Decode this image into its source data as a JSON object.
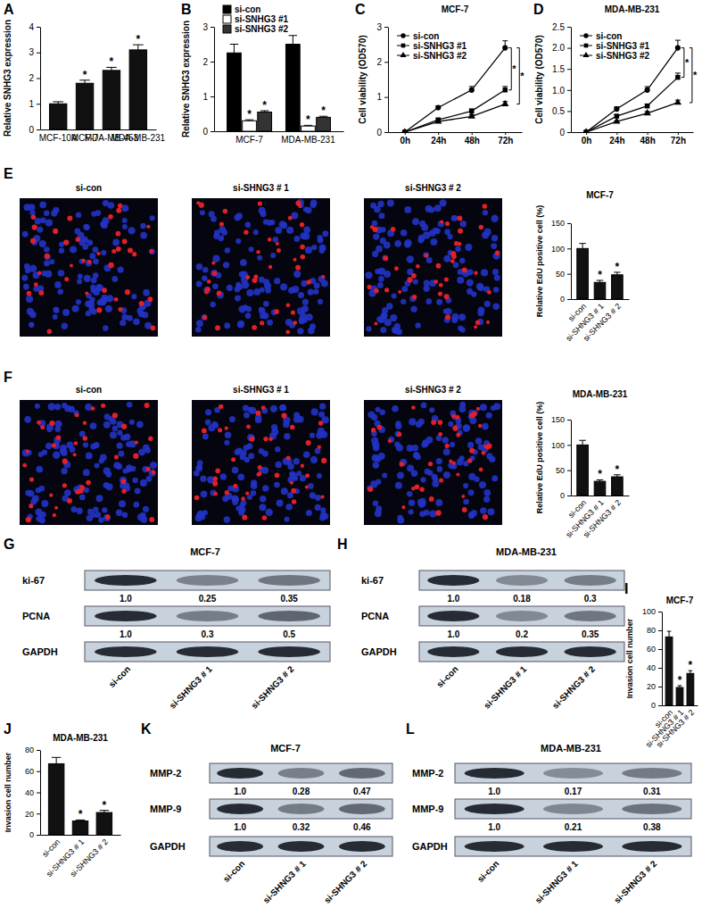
{
  "chart_data": [
    {
      "panel": "A",
      "type": "bar",
      "categories": [
        "MCF-10A",
        "MCF-7",
        "MDA-MB-453",
        "MDA-MB-231"
      ],
      "values": [
        1.0,
        1.8,
        2.3,
        3.1
      ],
      "errors": [
        0.08,
        0.12,
        0.12,
        0.2
      ],
      "significance": [
        null,
        "*",
        "*",
        "*"
      ],
      "color": "#111111",
      "y_label": "Relative SNHG3 expression",
      "ylim": [
        0,
        4
      ],
      "yticks": [
        0,
        1,
        2,
        3,
        4
      ]
    },
    {
      "panel": "B",
      "type": "grouped_bar",
      "categories": [
        "MCF-7",
        "MDA-MB-231"
      ],
      "series": [
        {
          "name": "si-con",
          "color": "#000000",
          "values": [
            2.25,
            2.5
          ],
          "errors": [
            0.25,
            0.25
          ],
          "significance": [
            null,
            null
          ]
        },
        {
          "name": "si-SNHG3 #1",
          "color": "#ffffff",
          "values": [
            0.3,
            0.15
          ],
          "errors": [
            0.03,
            0.02
          ],
          "significance": [
            "*",
            "*"
          ]
        },
        {
          "name": "si-SNHG3 #2",
          "color": "#333333",
          "values": [
            0.55,
            0.4
          ],
          "errors": [
            0.04,
            0.03
          ],
          "significance": [
            "*",
            "*"
          ]
        }
      ],
      "y_label": "Relative SNHG3 expression",
      "ylim": [
        0,
        3
      ],
      "yticks": [
        0,
        1,
        2,
        3
      ],
      "legend": "top-left"
    },
    {
      "panel": "C",
      "type": "line",
      "title": "MCF-7",
      "categories": [
        "0h",
        "24h",
        "48h",
        "72h"
      ],
      "series": [
        {
          "name": "si-con",
          "color": "#000000",
          "marker": "circle",
          "values": [
            0,
            0.7,
            1.2,
            2.4
          ],
          "errors": [
            0,
            0.05,
            0.1,
            0.2
          ]
        },
        {
          "name": "si-SNHG3 #1",
          "color": "#000000",
          "marker": "square",
          "values": [
            0,
            0.35,
            0.6,
            1.2
          ],
          "errors": [
            0,
            0.04,
            0.06,
            0.1
          ]
        },
        {
          "name": "si-SNHG3 #2",
          "color": "#000000",
          "marker": "triangle",
          "values": [
            0,
            0.3,
            0.45,
            0.8
          ],
          "errors": [
            0,
            0.03,
            0.05,
            0.07
          ]
        }
      ],
      "annotations": [
        "*",
        "*"
      ],
      "y_label": "Cell viability (OD570)",
      "ylim": [
        0,
        3
      ],
      "yticks": [
        0,
        1,
        2,
        3
      ],
      "legend": "top-left"
    },
    {
      "panel": "D",
      "type": "line",
      "title": "MDA-MB-231",
      "categories": [
        "0h",
        "24h",
        "48h",
        "72h"
      ],
      "series": [
        {
          "name": "si-con",
          "color": "#000000",
          "marker": "circle",
          "values": [
            0,
            0.55,
            1.0,
            2.0
          ],
          "errors": [
            0,
            0.05,
            0.08,
            0.18
          ]
        },
        {
          "name": "si-SNHG3 #1",
          "color": "#000000",
          "marker": "square",
          "values": [
            0,
            0.38,
            0.62,
            1.3
          ],
          "errors": [
            0,
            0.03,
            0.05,
            0.1
          ]
        },
        {
          "name": "si-SNHG3 #2",
          "color": "#000000",
          "marker": "triangle",
          "values": [
            0,
            0.25,
            0.45,
            0.7
          ],
          "errors": [
            0,
            0.02,
            0.04,
            0.06
          ]
        }
      ],
      "annotations": [
        "*",
        "*"
      ],
      "y_label": "Cell viability (OD570)",
      "ylim": [
        0,
        2.5
      ],
      "yticks": [
        0,
        0.5,
        {
          "value": 1,
          "label": "1.0"
        },
        1.5,
        {
          "value": 2,
          "label": "2.0"
        },
        2.5
      ],
      "legend": "top-left"
    },
    {
      "panel": "E",
      "type": "bar",
      "image_labels": [
        "si-con",
        "si-SHNG3 # 1",
        "si-SHNG3 # 2"
      ],
      "title": "MCF-7",
      "categories": [
        "si-con",
        "si-SHNG3 # 1",
        "si-SHNG3 # 2"
      ],
      "values": [
        100,
        33,
        48
      ],
      "errors": [
        10,
        4,
        5
      ],
      "significance": [
        null,
        "*",
        "*"
      ],
      "color": "#111111",
      "y_label": "Relative EdU positive cell (%)",
      "ylim": [
        0,
        150
      ],
      "yticks": [
        0,
        50,
        100,
        150
      ]
    },
    {
      "panel": "F",
      "type": "bar",
      "image_labels": [
        "si-con",
        "si-SHNG3 # 1",
        "si-SHNG3 # 2"
      ],
      "title": "MDA-MB-231",
      "categories": [
        "si-con",
        "si-SHNG3 # 1",
        "si-SHNG3 # 2"
      ],
      "values": [
        100,
        28,
        37
      ],
      "errors": [
        9,
        3,
        4
      ],
      "significance": [
        null,
        "*",
        "*"
      ],
      "color": "#111111",
      "y_label": "Relative EdU positive cell (%)",
      "ylim": [
        0,
        150
      ],
      "yticks": [
        0,
        50,
        100,
        150
      ]
    },
    {
      "panel": "G",
      "type": "blot",
      "title": "MCF-7",
      "lanes": [
        "si-con",
        "si-SHNG3 # 1",
        "si-SHNG3 # 2"
      ],
      "rows": [
        {
          "name": "ki-67",
          "values": [
            1.0,
            0.25,
            0.35
          ],
          "value_labels": [
            "1.0",
            "0.25",
            "0.35"
          ]
        },
        {
          "name": "PCNA",
          "values": [
            1.0,
            0.3,
            0.5
          ],
          "value_labels": [
            "1.0",
            "0.3",
            "0.5"
          ]
        },
        {
          "name": "GAPDH"
        }
      ]
    },
    {
      "panel": "H",
      "type": "blot",
      "title": "MDA-MB-231",
      "lanes": [
        "si-con",
        "si-SHNG3 # 1",
        "si-SHNG3 # 2"
      ],
      "rows": [
        {
          "name": "ki-67",
          "values": [
            1.0,
            0.18,
            0.3
          ],
          "value_labels": [
            "1.0",
            "0.18",
            "0.3"
          ]
        },
        {
          "name": "PCNA",
          "values": [
            1.0,
            0.2,
            0.35
          ],
          "value_labels": [
            "1.0",
            "0.2",
            "0.35"
          ]
        },
        {
          "name": "GAPDH"
        }
      ]
    },
    {
      "panel": "I",
      "type": "bar",
      "title": "MCF-7",
      "categories": [
        "si-con",
        "si-SHNG3 # 1",
        "si-SHNG3 # 2"
      ],
      "values": [
        73,
        19,
        34
      ],
      "errors": [
        6,
        2,
        3
      ],
      "significance": [
        null,
        "*",
        "*"
      ],
      "color": "#111111",
      "y_label": "Invasion cell number",
      "ylim": [
        0,
        100
      ],
      "yticks": [
        0,
        20,
        40,
        60,
        80,
        100
      ]
    },
    {
      "panel": "J",
      "type": "bar",
      "title": "MDA-MB-231",
      "categories": [
        "si-con",
        "si-SHNG3 # 1",
        "si-SHNG3 # 2"
      ],
      "values": [
        67,
        13,
        21
      ],
      "errors": [
        6,
        1,
        2
      ],
      "significance": [
        null,
        "*",
        "*"
      ],
      "color": "#111111",
      "y_label": "Invasion cell number",
      "ylim": [
        0,
        80
      ],
      "yticks": [
        0,
        20,
        40,
        60,
        80
      ]
    },
    {
      "panel": "K",
      "type": "blot",
      "title": "MCF-7",
      "lanes": [
        "si-con",
        "si-SHNG3 # 1",
        "si-SHNG3 # 2"
      ],
      "rows": [
        {
          "name": "MMP-2",
          "values": [
            1.0,
            0.28,
            0.47
          ],
          "value_labels": [
            "1.0",
            "0.28",
            "0.47"
          ]
        },
        {
          "name": "MMP-9",
          "values": [
            1.0,
            0.32,
            0.46
          ],
          "value_labels": [
            "1.0",
            "0.32",
            "0.46"
          ]
        },
        {
          "name": "GAPDH"
        }
      ]
    },
    {
      "panel": "L",
      "type": "blot",
      "title": "MDA-MB-231",
      "lanes": [
        "si-con",
        "si-SHNG3 # 1",
        "si-SHNG3 # 2"
      ],
      "rows": [
        {
          "name": "MMP-2",
          "values": [
            1.0,
            0.17,
            0.31
          ],
          "value_labels": [
            "1.0",
            "0.17",
            "0.31"
          ]
        },
        {
          "name": "MMP-9",
          "values": [
            1.0,
            0.21,
            0.38
          ],
          "value_labels": [
            "1.0",
            "0.21",
            "0.38"
          ]
        },
        {
          "name": "GAPDH"
        }
      ]
    }
  ]
}
